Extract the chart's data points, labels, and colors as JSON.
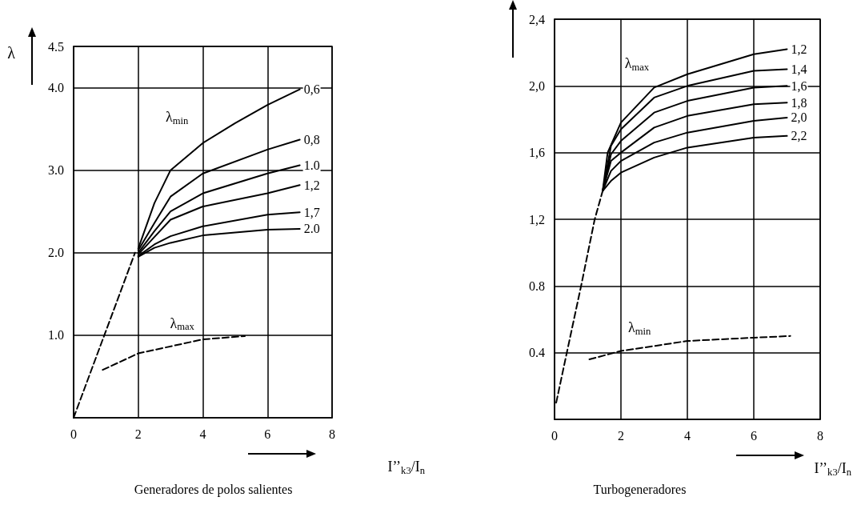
{
  "chart_data": [
    {
      "type": "line",
      "title": "Generadores de polos salientes",
      "xlabel": "I’’$_{k3}$/I$_{n}$",
      "ylabel": "λ",
      "xlim": [
        0,
        8
      ],
      "xticks": [
        0,
        2,
        4,
        6,
        8
      ],
      "ylim": [
        0,
        4.5
      ],
      "yticks": [
        {
          "value": 1,
          "label": "1.0"
        },
        {
          "value": 2,
          "label": "2.0"
        },
        {
          "value": 3,
          "label": "3.0"
        },
        {
          "value": 4,
          "label": "4.0"
        },
        4.5
      ],
      "grid": true,
      "legend": false,
      "marker": "none",
      "annotations": [
        "λ$_{min}$",
        "λ$_{max}$"
      ],
      "series": [
        {
          "color": "#000000",
          "line_style": "dashed",
          "x": [
            0,
            0.95,
            1.9
          ],
          "values": [
            0,
            1.0,
            2.0
          ]
        },
        {
          "name": "0,6",
          "color": "#000000",
          "x": [
            2,
            2.5,
            3,
            4,
            5,
            6,
            7
          ],
          "values": [
            2.05,
            2.6,
            3.0,
            3.33,
            3.57,
            3.79,
            3.98
          ]
        },
        {
          "name": "0,8",
          "color": "#000000",
          "x": [
            2,
            2.5,
            3,
            4,
            6,
            7
          ],
          "values": [
            2.03,
            2.36,
            2.68,
            2.96,
            3.25,
            3.37
          ]
        },
        {
          "name": "1.0",
          "color": "#000000",
          "x": [
            2,
            2.5,
            3,
            4,
            6,
            7
          ],
          "values": [
            2.0,
            2.26,
            2.5,
            2.72,
            2.96,
            3.06
          ]
        },
        {
          "name": "1,2",
          "color": "#000000",
          "x": [
            2,
            2.5,
            3,
            4,
            6,
            7
          ],
          "values": [
            1.98,
            2.19,
            2.4,
            2.56,
            2.72,
            2.82
          ]
        },
        {
          "name": "1,7",
          "color": "#000000",
          "x": [
            2,
            2.5,
            3,
            4,
            6,
            7
          ],
          "values": [
            1.96,
            2.1,
            2.2,
            2.32,
            2.46,
            2.49
          ]
        },
        {
          "name": "2.0",
          "color": "#000000",
          "x": [
            2,
            2.5,
            3,
            4,
            6,
            7
          ],
          "values": [
            1.95,
            2.06,
            2.12,
            2.21,
            2.28,
            2.29
          ]
        },
        {
          "color": "#000000",
          "line_style": "dashed",
          "x": [
            0.9,
            2,
            4,
            5.3
          ],
          "values": [
            0.58,
            0.78,
            0.95,
            0.99
          ]
        }
      ]
    },
    {
      "type": "line",
      "title": "Turbogeneradores",
      "xlabel": "I’’$_{k3}$/I$_{n}$",
      "xlim": [
        0,
        8
      ],
      "xticks": [
        0,
        2,
        4,
        6,
        8
      ],
      "ylim": [
        0,
        2.4
      ],
      "yticks": [
        0.4,
        0.8,
        {
          "value": 1.2,
          "label": "1,2"
        },
        {
          "value": 1.6,
          "label": "1,6"
        },
        {
          "value": 2.0,
          "label": "2,0"
        },
        {
          "value": 2.4,
          "label": "2,4"
        }
      ],
      "grid": true,
      "legend": false,
      "marker": "none",
      "annotations": [
        "λ$_{max}$",
        "λ$_{min}$"
      ],
      "series": [
        {
          "color": "#000000",
          "line_style": "dashed",
          "x": [
            0.05,
            0.37,
            0.8,
            1.21,
            1.45
          ],
          "values": [
            0.1,
            0.4,
            0.8,
            1.2,
            1.37
          ]
        },
        {
          "name": "1,2",
          "color": "#000000",
          "x": [
            1.45,
            1.6,
            2,
            3,
            4,
            6,
            7
          ],
          "values": [
            1.37,
            1.6,
            1.78,
            1.99,
            2.07,
            2.19,
            2.22
          ]
        },
        {
          "name": "1,4",
          "color": "#000000",
          "x": [
            1.45,
            1.7,
            2,
            3,
            4,
            6,
            7
          ],
          "values": [
            1.37,
            1.64,
            1.74,
            1.93,
            2.0,
            2.09,
            2.1
          ]
        },
        {
          "name": "1,6",
          "color": "#000000",
          "x": [
            1.45,
            1.7,
            2,
            3,
            4,
            6,
            7
          ],
          "values": [
            1.37,
            1.59,
            1.67,
            1.84,
            1.91,
            1.99,
            2.0
          ]
        },
        {
          "name": "1,8",
          "color": "#000000",
          "x": [
            1.45,
            1.7,
            2,
            3,
            4,
            6,
            7
          ],
          "values": [
            1.37,
            1.55,
            1.6,
            1.75,
            1.82,
            1.89,
            1.9
          ]
        },
        {
          "name": "2,0",
          "color": "#000000",
          "x": [
            1.45,
            1.7,
            2,
            3,
            4,
            6,
            7
          ],
          "values": [
            1.37,
            1.49,
            1.55,
            1.66,
            1.72,
            1.79,
            1.81
          ]
        },
        {
          "name": "2,2",
          "color": "#000000",
          "x": [
            1.45,
            1.7,
            2,
            3,
            4,
            6,
            7
          ],
          "values": [
            1.37,
            1.43,
            1.48,
            1.57,
            1.63,
            1.69,
            1.7
          ]
        },
        {
          "color": "#000000",
          "line_style": "dashed",
          "x": [
            1.05,
            2,
            4,
            6,
            7.1
          ],
          "values": [
            0.36,
            0.41,
            0.47,
            0.49,
            0.5
          ]
        }
      ]
    }
  ]
}
